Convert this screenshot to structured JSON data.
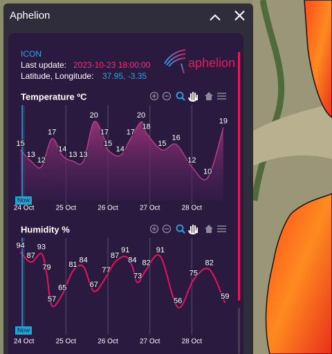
{
  "window": {
    "title": "Aphelion"
  },
  "info": {
    "model": "ICON",
    "last_update_label": "Last update:",
    "last_update": "2023-10-23 18:00:00",
    "coords_label": "Latitude, Longitude:",
    "coords": "37.95, -3.35"
  },
  "logo": "aphelion",
  "chart_data": [
    {
      "type": "area",
      "title": "Temperature ºC",
      "color": "#b23f84",
      "x": [
        -2,
        4,
        10,
        16,
        22,
        28,
        34,
        40,
        46,
        48,
        55,
        61,
        67,
        70,
        79,
        87,
        96,
        105,
        114
      ],
      "values": [
        15,
        13,
        12,
        17,
        14,
        13,
        13,
        20,
        17,
        15,
        14,
        17,
        20,
        18,
        15,
        16,
        12,
        10,
        19
      ],
      "xlim": [
        -5,
        118
      ],
      "ylim": [
        6,
        22
      ],
      "xticks": [
        {
          "value": 0,
          "label": "24 Oct"
        },
        {
          "value": 24,
          "label": "25 Oct"
        },
        {
          "value": 48,
          "label": "26 Oct"
        },
        {
          "value": 72,
          "label": "27 Oct"
        },
        {
          "value": 96,
          "label": "28 Oct"
        }
      ],
      "annotation": {
        "text": "Now",
        "x": -1
      }
    },
    {
      "type": "line",
      "title": "Humidity %",
      "color": "#e8125e",
      "x": [
        -2,
        4,
        10,
        13,
        16,
        22,
        28,
        34,
        40,
        47,
        52,
        58,
        62,
        65,
        70,
        78,
        88,
        97,
        106,
        115
      ],
      "values": [
        94,
        87,
        93,
        79,
        57,
        65,
        81,
        84,
        67,
        77,
        87,
        91,
        84,
        73,
        82,
        91,
        56,
        75,
        82,
        59
      ],
      "xlim": [
        -5,
        118
      ],
      "ylim": [
        40,
        100
      ],
      "xticks": [
        {
          "value": 0,
          "label": "24 Oct"
        },
        {
          "value": 24,
          "label": "25 Oct"
        },
        {
          "value": 48,
          "label": "26 Oct"
        },
        {
          "value": 72,
          "label": "27 Oct"
        },
        {
          "value": 96,
          "label": "28 Oct"
        }
      ],
      "annotation": {
        "text": "Now",
        "x": -1
      }
    }
  ]
}
